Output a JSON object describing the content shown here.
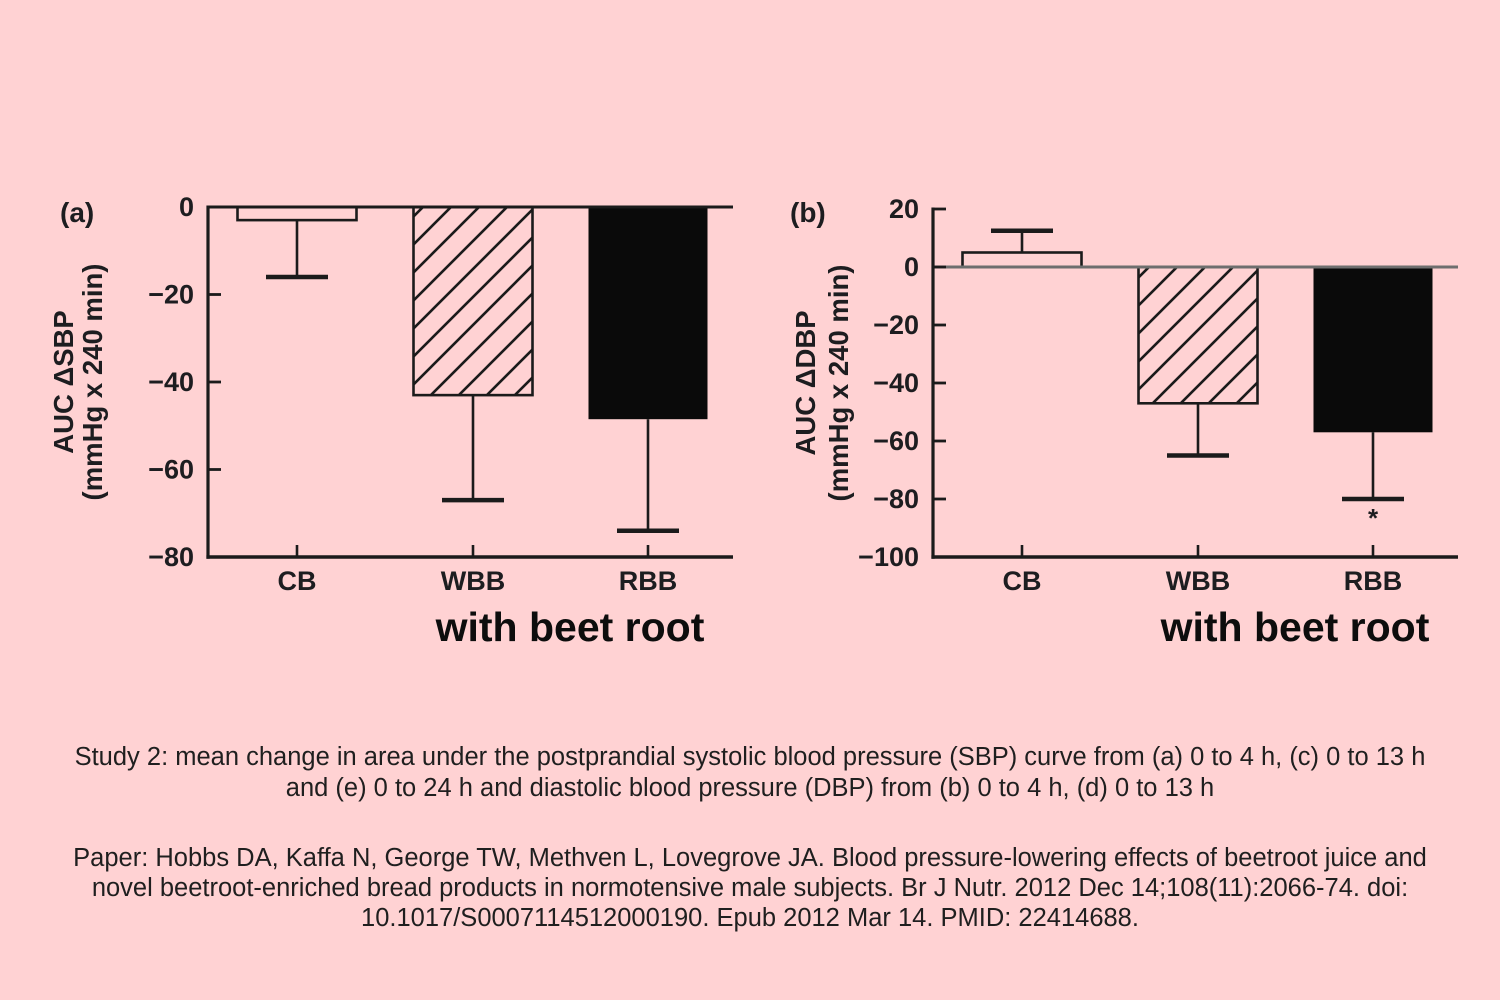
{
  "page": {
    "background_color": "#FFD2D3",
    "ink_color": "#1B1B1B"
  },
  "chart_data": [
    {
      "type": "bar",
      "panel_label": "(a)",
      "ylabel": "AUC ΔSBP",
      "ylabel_units": "(mmHg x 240 min)",
      "categories": [
        "CB",
        "WBB",
        "RBB"
      ],
      "values": [
        -3,
        -43,
        -48.5
      ],
      "error_tips": [
        -16,
        -67,
        -74
      ],
      "bar_styles": [
        "open",
        "hatched",
        "solid"
      ],
      "sig_markers": [
        "",
        "",
        ""
      ],
      "ylim": [
        -80,
        0
      ],
      "yticks": [
        0,
        -20,
        -40,
        -60,
        -80
      ],
      "grid": "off",
      "zero_line_color": "#1B1B1B",
      "footer_label": "with beet root"
    },
    {
      "type": "bar",
      "panel_label": "(b)",
      "ylabel": "AUC ΔDBP",
      "ylabel_units": "(mmHg x 240 min)",
      "categories": [
        "CB",
        "WBB",
        "RBB"
      ],
      "values": [
        5,
        -47,
        -57
      ],
      "error_tips": [
        12.5,
        -65,
        -80
      ],
      "bar_styles": [
        "open",
        "hatched",
        "solid"
      ],
      "sig_markers": [
        "",
        "",
        "*"
      ],
      "ylim": [
        -100,
        20
      ],
      "yticks": [
        20,
        0,
        -20,
        -40,
        -60,
        -80,
        -100
      ],
      "grid": "off",
      "zero_line_color": "#6E6E6E",
      "footer_label": "with beet root"
    }
  ],
  "caption": {
    "lines": [
      "Study 2: mean change in area under the postprandial systolic blood pressure (SBP) curve from (a) 0 to 4 h, (c) 0 to 13 h",
      "and (e) 0 to 24 h and diastolic blood pressure (DBP) from (b) 0 to 4 h, (d) 0 to 13 h"
    ]
  },
  "citation": {
    "lines": [
      "Paper: Hobbs DA, Kaffa N, George TW, Methven L, Lovegrove JA. Blood pressure-lowering effects of beetroot juice and",
      "novel beetroot-enriched bread products in normotensive male subjects. Br J Nutr. 2012 Dec 14;108(11):2066-74. doi:",
      "10.1017/S0007114512000190. Epub 2012 Mar 14. PMID: 22414688."
    ]
  }
}
